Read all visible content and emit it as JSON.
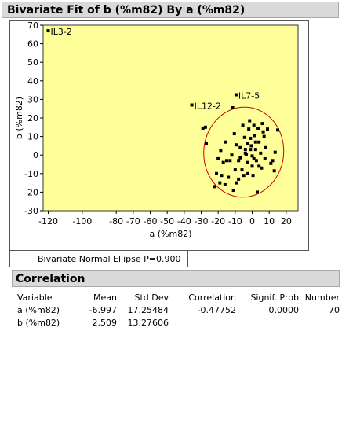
{
  "report": {
    "title": "Bivariate Fit of b (%m82) By a (%m82)"
  },
  "chart_data": {
    "type": "scatter",
    "title": "",
    "xlabel": "a (%m82)",
    "ylabel": "b (%m82)",
    "xlim": [
      -123,
      27
    ],
    "ylim": [
      -30,
      70
    ],
    "x_ticks": [
      -120,
      -100,
      -80,
      -70,
      -60,
      -50,
      -40,
      -30,
      -20,
      -10,
      0,
      10,
      20
    ],
    "y_ticks": [
      -30,
      -20,
      -10,
      0,
      10,
      20,
      30,
      40,
      50,
      60,
      70
    ],
    "plot_background": "#ffff99",
    "point_color": "#000000",
    "ellipse_color": "#cc0000",
    "ellipse_probability": 0.9,
    "labels": [
      {
        "text": "IL3-2",
        "x": -120,
        "y": 67
      },
      {
        "text": "IL7-5",
        "x": -9.5,
        "y": 32.5
      },
      {
        "text": "IL12-2",
        "x": -35.5,
        "y": 27
      }
    ],
    "points": [
      [
        -120,
        67
      ],
      [
        -9.5,
        32.5
      ],
      [
        -35.5,
        27
      ],
      [
        -29,
        14.5
      ],
      [
        -27.5,
        15
      ],
      [
        -27,
        6
      ],
      [
        -18.5,
        2.5
      ],
      [
        -15.5,
        7
      ],
      [
        -11.5,
        25.5
      ],
      [
        -10.5,
        11.5
      ],
      [
        -9.5,
        5.5
      ],
      [
        -8,
        -3
      ],
      [
        -7,
        -1.5
      ],
      [
        -5.5,
        16
      ],
      [
        -4.5,
        9.5
      ],
      [
        -4,
        3
      ],
      [
        -3.5,
        0.5
      ],
      [
        -3,
        -4
      ],
      [
        -2.5,
        -10
      ],
      [
        -2,
        14
      ],
      [
        -1.5,
        18.5
      ],
      [
        -1,
        9
      ],
      [
        -0.5,
        5
      ],
      [
        0,
        -0.5
      ],
      [
        0,
        -6
      ],
      [
        0.5,
        -11
      ],
      [
        1,
        16
      ],
      [
        1.5,
        10.5
      ],
      [
        2,
        3
      ],
      [
        2.5,
        -3
      ],
      [
        3,
        -20
      ],
      [
        3.5,
        14.5
      ],
      [
        4,
        7
      ],
      [
        5,
        1
      ],
      [
        5.5,
        -7
      ],
      [
        6,
        17
      ],
      [
        6.5,
        12.5
      ],
      [
        7.5,
        -2
      ],
      [
        8,
        4
      ],
      [
        9,
        14
      ],
      [
        11,
        -4.5
      ],
      [
        12,
        -3
      ],
      [
        13,
        -8.5
      ],
      [
        13.5,
        1.5
      ],
      [
        15,
        13.5
      ],
      [
        -12,
        0
      ],
      [
        -13,
        -3
      ],
      [
        -14,
        -12
      ],
      [
        -15,
        -3
      ],
      [
        -16,
        -16
      ],
      [
        -17,
        -4
      ],
      [
        -18,
        -11
      ],
      [
        -19,
        -15
      ],
      [
        -20,
        -2
      ],
      [
        -21,
        -10
      ],
      [
        -22,
        -17
      ],
      [
        -11,
        -19
      ],
      [
        -10,
        -8
      ],
      [
        -9,
        -15
      ],
      [
        -8,
        -13
      ],
      [
        -6,
        -8
      ],
      [
        -5,
        -11
      ],
      [
        -4,
        1
      ],
      [
        -3,
        6
      ],
      [
        -1,
        3
      ],
      [
        1,
        -2
      ],
      [
        2,
        7
      ],
      [
        4,
        -6
      ],
      [
        7,
        10
      ],
      [
        -7,
        4
      ]
    ]
  },
  "legend": {
    "label": "Bivariate Normal Ellipse P=0.900"
  },
  "correlation": {
    "title": "Correlation",
    "headers": {
      "variable": "Variable",
      "mean": "Mean",
      "std_dev": "Std Dev",
      "correlation": "Correlation",
      "signif_prob": "Signif. Prob",
      "number": "Number"
    },
    "rows": [
      {
        "variable": "a (%m82)",
        "mean": "-6.997",
        "std_dev": "17.25484",
        "correlation": "-0.47752",
        "signif_prob": "0.0000",
        "number": "70"
      },
      {
        "variable": "b (%m82)",
        "mean": "2.509",
        "std_dev": "13.27606",
        "correlation": "",
        "signif_prob": "",
        "number": ""
      }
    ]
  }
}
